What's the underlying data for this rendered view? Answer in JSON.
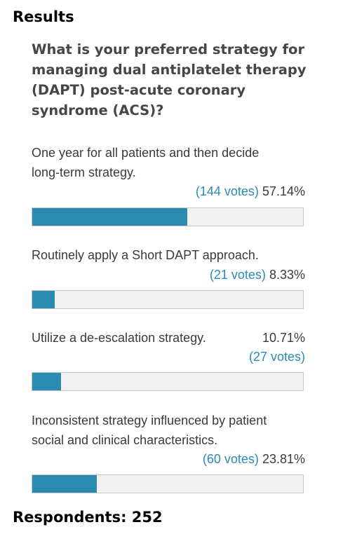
{
  "heading": "Results",
  "question": "What is your preferred strategy for managing dual antiplatelet therapy (DAPT) post-acute coronary syndrome (ACS)?",
  "options": [
    {
      "line1": "One year for all patients and then decide",
      "line2": "long-term strategy.",
      "votes": "(144 votes)",
      "percent": "57.14%",
      "fraction": 0.5714
    },
    {
      "line1": "Routinely apply a Short DAPT approach.",
      "line2": "",
      "votes": "(21 votes)",
      "percent": "8.33%",
      "fraction": 0.0833
    },
    {
      "line1": "Utilize a de-escalation strategy.",
      "line2": "",
      "votes": "(27 votes)",
      "percent": "10.71%",
      "fraction": 0.1071
    },
    {
      "line1": "Inconsistent strategy influenced by patient",
      "line2": "social and clinical characteristics.",
      "votes": "(60 votes)",
      "percent": "23.81%",
      "fraction": 0.2381
    }
  ],
  "footer": "Respondents: 252",
  "colors": {
    "bar_fill": "#2a8ab0",
    "votes_text": "#2a8ab8",
    "bar_track": "#f1f1f1"
  }
}
